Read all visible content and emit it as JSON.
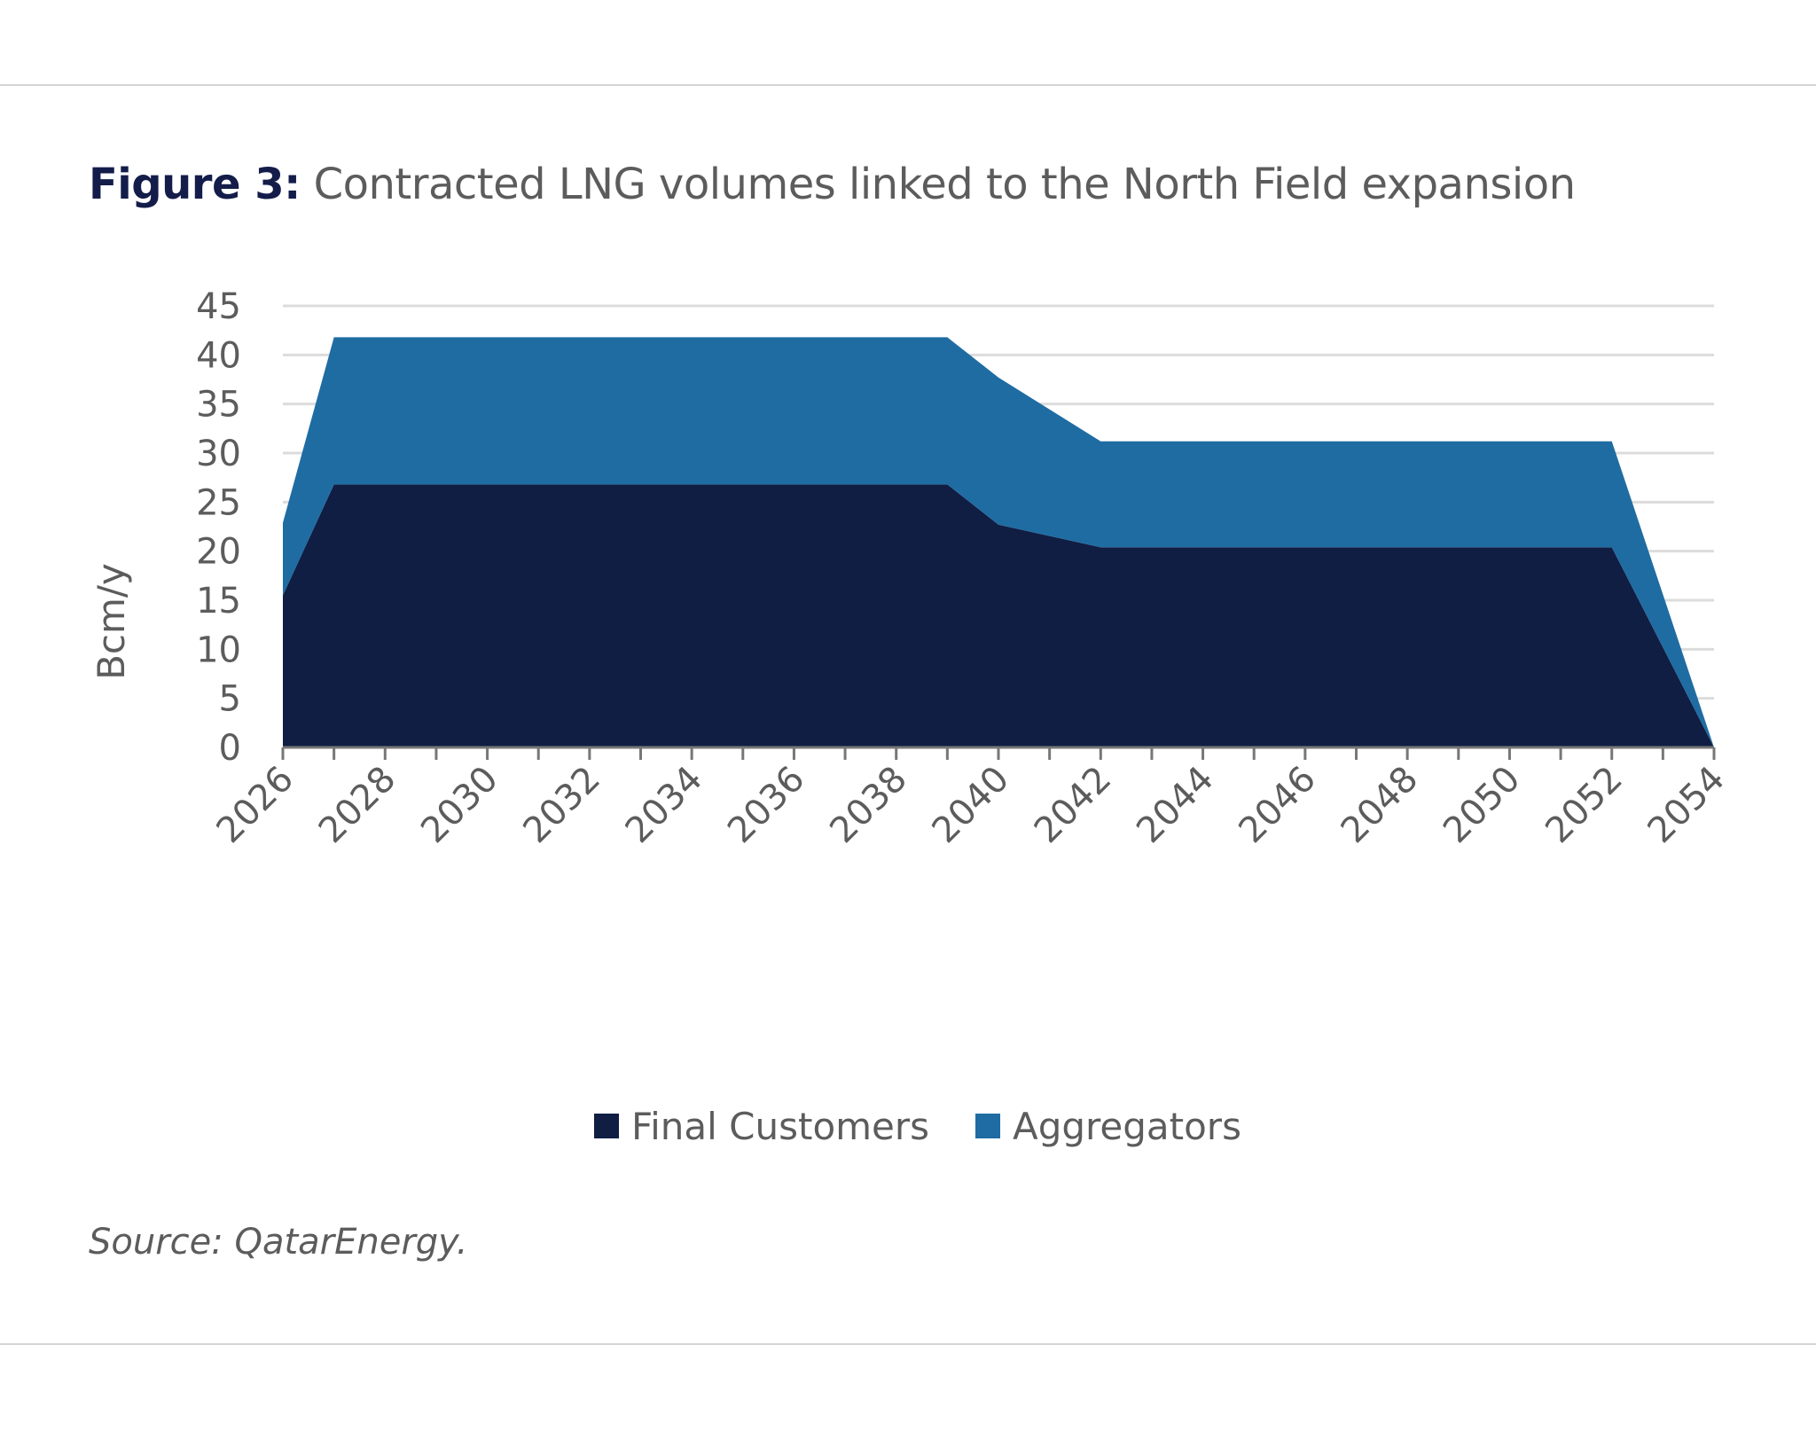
{
  "figure": {
    "label": "Figure 3:",
    "title": "Contracted LNG volumes linked to the North Field expansion",
    "source": "Source: QatarEnergy."
  },
  "chart_data": {
    "type": "area",
    "stacked": true,
    "title": "Contracted LNG volumes linked to the North Field expansion",
    "ylabel": "Bcm/y",
    "xlabel": "",
    "ylim": [
      0,
      45
    ],
    "yticks": [
      0,
      5,
      10,
      15,
      20,
      25,
      30,
      35,
      40,
      45
    ],
    "xlim": [
      2026,
      2054
    ],
    "xticks": [
      "2026",
      "2028",
      "2030",
      "2032",
      "2034",
      "2036",
      "2038",
      "2040",
      "2042",
      "2044",
      "2046",
      "2048",
      "2050",
      "2052",
      "2054"
    ],
    "grid": "horizontal",
    "legend_position": "bottom",
    "x": [
      2026,
      2027,
      2039,
      2040,
      2042,
      2052,
      2054
    ],
    "series": [
      {
        "name": "Final Customers",
        "color": "#101e43",
        "values": [
          15.5,
          26.8,
          26.8,
          22.7,
          20.4,
          20.4,
          0
        ]
      },
      {
        "name": "Aggregators",
        "color": "#1f6ca3",
        "values": [
          7.4,
          15.0,
          15.0,
          15.0,
          10.8,
          10.8,
          0
        ]
      }
    ]
  }
}
